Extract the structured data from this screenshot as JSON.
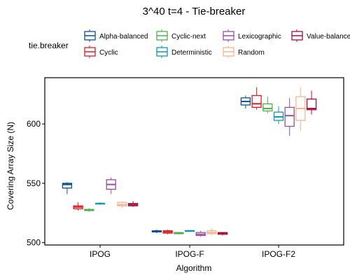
{
  "chart_data": {
    "type": "boxplot",
    "title": "3^40 t=4 - Tie-breaker",
    "xlabel": "Algorithm",
    "ylabel": "Covering Array Size (N)",
    "ylim": [
      498,
      639
    ],
    "yticks": [
      500,
      550,
      600
    ],
    "categories": [
      "IPOG",
      "IPOG-F",
      "IPOG-F2"
    ],
    "legend": {
      "title": "tie.breaker",
      "position": "top"
    },
    "series": [
      {
        "name": "Alpha-balanced",
        "color": "#08519c",
        "boxes": [
          {
            "min": 541,
            "q1": 546,
            "median": 549,
            "q3": 550,
            "max": 551
          },
          {
            "min": 508,
            "q1": 509,
            "median": 509.5,
            "q3": 510,
            "max": 511
          },
          {
            "min": 613,
            "q1": 616,
            "median": 619,
            "q3": 622,
            "max": 624
          }
        ]
      },
      {
        "name": "Cyclic",
        "color": "#e41a1c",
        "boxes": [
          {
            "min": 527,
            "q1": 528.5,
            "median": 530,
            "q3": 531,
            "max": 534
          },
          {
            "min": 507,
            "q1": 508,
            "median": 509,
            "q3": 510,
            "max": 511
          },
          {
            "min": 612,
            "q1": 614,
            "median": 617,
            "q3": 624,
            "max": 631
          }
        ]
      },
      {
        "name": "Cyclic-next",
        "color": "#4daf4a",
        "boxes": [
          {
            "min": 526,
            "q1": 527,
            "median": 527.5,
            "q3": 528,
            "max": 529
          },
          {
            "min": 507,
            "q1": 507.5,
            "median": 508,
            "q3": 508.5,
            "max": 509
          },
          {
            "min": 609,
            "q1": 611,
            "median": 613,
            "q3": 617,
            "max": 623
          }
        ]
      },
      {
        "name": "Deterministic",
        "color": "#0a9bb5",
        "boxes": [
          {
            "min": 532,
            "q1": 532.5,
            "median": 533,
            "q3": 533,
            "max": 534
          },
          {
            "min": 509,
            "q1": 509.5,
            "median": 510,
            "q3": 510,
            "max": 510.5
          },
          {
            "min": 600,
            "q1": 603,
            "median": 606,
            "q3": 610,
            "max": 615
          }
        ]
      },
      {
        "name": "Lexicographic",
        "color": "#984ea3",
        "boxes": [
          {
            "min": 541,
            "q1": 545,
            "median": 549,
            "q3": 553,
            "max": 555
          },
          {
            "min": 505,
            "q1": 506,
            "median": 507,
            "q3": 508.5,
            "max": 510
          },
          {
            "min": 590,
            "q1": 598,
            "median": 607,
            "q3": 614,
            "max": 622
          }
        ]
      },
      {
        "name": "Random",
        "color": "#fbb48f",
        "boxes": [
          {
            "min": 529,
            "q1": 531,
            "median": 532,
            "q3": 534,
            "max": 535
          },
          {
            "min": 506,
            "q1": 507.5,
            "median": 508.5,
            "q3": 510,
            "max": 512
          },
          {
            "min": 594,
            "q1": 603,
            "median": 613,
            "q3": 623,
            "max": 631
          }
        ]
      },
      {
        "name": "Value-balanced",
        "color": "#a50f3c",
        "boxes": [
          {
            "min": 530,
            "q1": 531,
            "median": 532,
            "q3": 533,
            "max": 535
          },
          {
            "min": 506,
            "q1": 507,
            "median": 508,
            "q3": 508.5,
            "max": 509
          },
          {
            "min": 608,
            "q1": 612,
            "median": 613,
            "q3": 621,
            "max": 628
          }
        ]
      }
    ]
  }
}
